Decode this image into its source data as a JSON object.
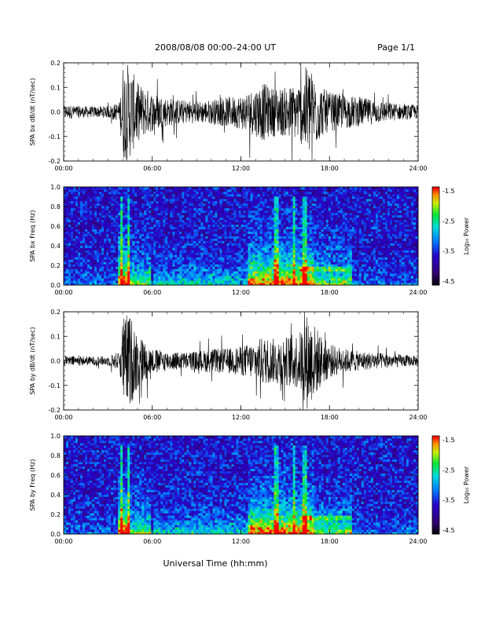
{
  "header": {
    "title": "2008/08/08  00:00–24:00 UT",
    "page": "Page 1/1"
  },
  "xaxis": {
    "label": "Universal Time (hh:mm)",
    "ticks": [
      "00:00",
      "06:00",
      "12:00",
      "18:00",
      "24:00"
    ]
  },
  "colorbar": {
    "label": "Log₁₀ Power",
    "ticks": [
      "-1.5",
      "-2.5",
      "-3.5",
      "-4.5"
    ]
  },
  "chart_data": [
    {
      "type": "line",
      "ylabel": "SPA bx dB/dt (nT/sec)",
      "xlim": [
        0,
        24
      ],
      "ylim": [
        -0.2,
        0.2
      ],
      "yticks": [
        "0.2",
        "0.1",
        "0.0",
        "-0.1",
        "-0.2"
      ],
      "envelope": {
        "hours": [
          0,
          1,
          2,
          3,
          3.8,
          4.0,
          4.4,
          5.0,
          5.5,
          6,
          7,
          8,
          9,
          10,
          11,
          12,
          13,
          13.5,
          14,
          15,
          16,
          16.5,
          17,
          17.5,
          18,
          19,
          20,
          21,
          22,
          23,
          24
        ],
        "amplitude": [
          0.03,
          0.025,
          0.022,
          0.025,
          0.04,
          0.2,
          0.2,
          0.12,
          0.1,
          0.08,
          0.06,
          0.05,
          0.045,
          0.05,
          0.06,
          0.07,
          0.1,
          0.12,
          0.1,
          0.1,
          0.12,
          0.2,
          0.15,
          0.1,
          0.08,
          0.07,
          0.06,
          0.05,
          0.04,
          0.03,
          0.03
        ]
      }
    },
    {
      "type": "heatmap",
      "ylabel": "SPA bx Freq (Hz)",
      "xlim": [
        0,
        24
      ],
      "ylim": [
        0,
        1.0
      ],
      "yticks": [
        "1.0",
        "0.8",
        "0.6",
        "0.4",
        "0.2",
        "0.0"
      ],
      "zlim": [
        -4.5,
        -1.5
      ],
      "zlabel": "Log₁₀ Power"
    },
    {
      "type": "line",
      "ylabel": "SPA by dB/dt (nT/sec)",
      "xlim": [
        0,
        24
      ],
      "ylim": [
        -0.2,
        0.2
      ],
      "yticks": [
        "0.2",
        "0.1",
        "0.0",
        "-0.1",
        "-0.2"
      ],
      "envelope": {
        "hours": [
          0,
          1,
          2,
          3,
          3.8,
          4.0,
          4.4,
          5.0,
          5.5,
          6,
          7,
          8,
          9,
          10,
          11,
          12,
          13,
          13.5,
          14,
          15,
          16,
          16.5,
          17,
          17.5,
          18,
          19,
          20,
          21,
          22,
          23,
          24
        ],
        "amplitude": [
          0.02,
          0.02,
          0.018,
          0.02,
          0.04,
          0.18,
          0.2,
          0.12,
          0.08,
          0.05,
          0.04,
          0.035,
          0.04,
          0.05,
          0.05,
          0.06,
          0.08,
          0.1,
          0.09,
          0.1,
          0.12,
          0.2,
          0.15,
          0.1,
          0.07,
          0.05,
          0.04,
          0.035,
          0.03,
          0.025,
          0.02
        ]
      }
    },
    {
      "type": "heatmap",
      "ylabel": "SPA by Freq (Hz)",
      "xlim": [
        0,
        24
      ],
      "ylim": [
        0,
        1.0
      ],
      "yticks": [
        "1.0",
        "0.8",
        "0.6",
        "0.4",
        "0.2",
        "0.0"
      ],
      "zlim": [
        -4.5,
        -1.5
      ],
      "zlabel": "Log₁₀ Power"
    }
  ]
}
